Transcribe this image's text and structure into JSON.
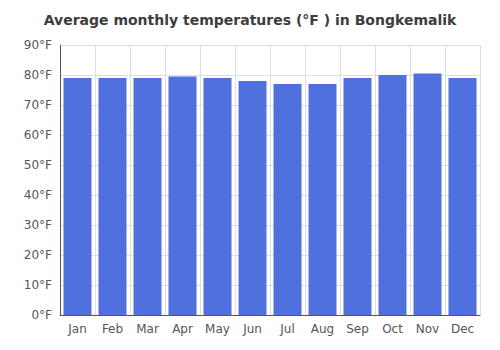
{
  "chart_data": {
    "type": "bar",
    "title": "Average monthly temperatures (°F ) in Bongkemalik",
    "categories": [
      "Jan",
      "Feb",
      "Mar",
      "Apr",
      "May",
      "Jun",
      "Jul",
      "Aug",
      "Sep",
      "Oct",
      "Nov",
      "Dec"
    ],
    "values": [
      79.0,
      79.0,
      79.0,
      79.5,
      79.0,
      78.0,
      77.0,
      77.0,
      79.0,
      80.0,
      80.5,
      79.0
    ],
    "ylim": [
      0,
      90
    ],
    "yticks": [
      {
        "value": 0,
        "label": "0°F"
      },
      {
        "value": 10,
        "label": "10°F"
      },
      {
        "value": 20,
        "label": "20°F"
      },
      {
        "value": 30,
        "label": "30°F"
      },
      {
        "value": 40,
        "label": "40°F"
      },
      {
        "value": 50,
        "label": "50°F"
      },
      {
        "value": 60,
        "label": "60°F"
      },
      {
        "value": 70,
        "label": "70°F"
      },
      {
        "value": 80,
        "label": "80°F"
      },
      {
        "value": 90,
        "label": "90°F"
      }
    ],
    "grid": true
  }
}
